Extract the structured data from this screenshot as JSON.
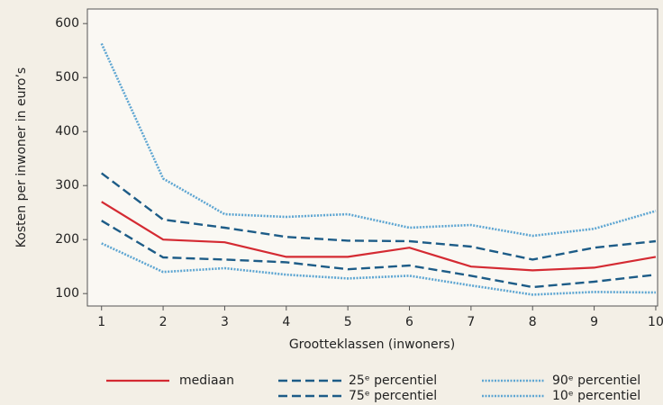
{
  "chart_data": {
    "type": "line",
    "x_label": "Grootteklassen (inwoners)",
    "y_label": "Kosten per inwoner in euro’s",
    "x": [
      1,
      2,
      3,
      4,
      5,
      6,
      7,
      8,
      9,
      10
    ],
    "xlim": [
      0.77,
      10.03
    ],
    "xticks": [
      1,
      2,
      3,
      4,
      5,
      6,
      7,
      8,
      9,
      10
    ],
    "ylim": [
      77,
      627
    ],
    "yticks": [
      100,
      200,
      300,
      400,
      500,
      600
    ],
    "series": [
      {
        "name": "mediaan",
        "color": "#d42a32",
        "style": "solid",
        "values": [
          270,
          200,
          195,
          168,
          168,
          185,
          150,
          143,
          148,
          168
        ]
      },
      {
        "name": "25ᵉ percentiel",
        "color": "#1d5c87",
        "style": "dashed",
        "values": [
          235,
          167,
          163,
          158,
          145,
          152,
          133,
          112,
          122,
          135
        ]
      },
      {
        "name": "75ᵉ percentiel",
        "color": "#1d5c87",
        "style": "dashed",
        "values": [
          323,
          237,
          222,
          205,
          198,
          197,
          187,
          163,
          185,
          197
        ]
      },
      {
        "name": "90ᵉ percentiel",
        "color": "#5ea6d2",
        "style": "dotted",
        "values": [
          563,
          313,
          247,
          242,
          247,
          222,
          227,
          207,
          220,
          253
        ]
      },
      {
        "name": "10ᵉ percentiel",
        "color": "#5ea6d2",
        "style": "dotted",
        "values": [
          193,
          140,
          147,
          135,
          128,
          133,
          115,
          98,
          103,
          102
        ]
      }
    ]
  }
}
